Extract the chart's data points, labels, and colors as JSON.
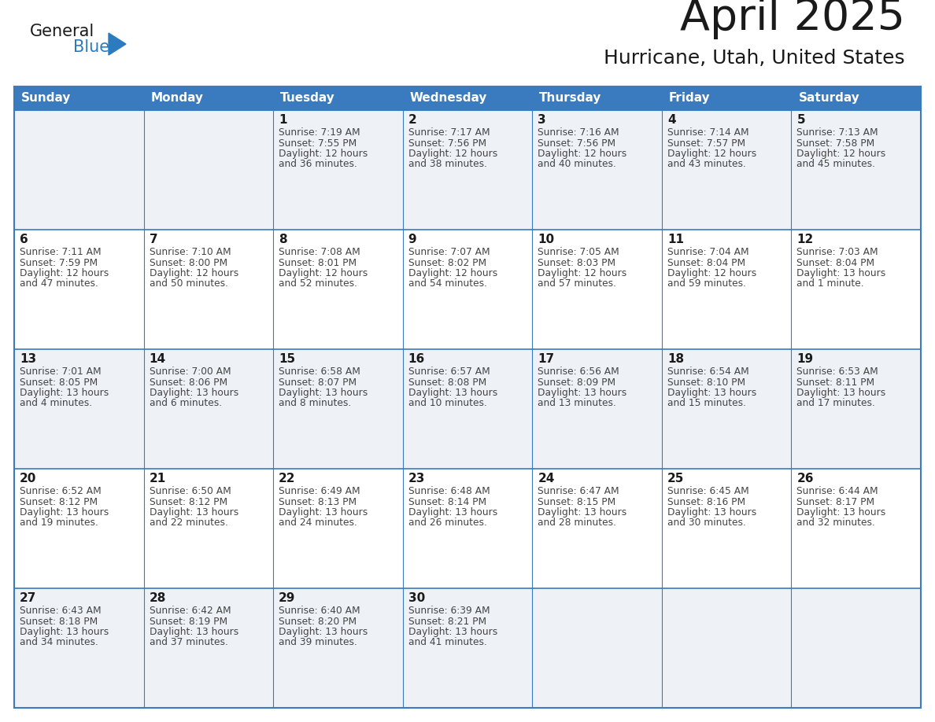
{
  "title": "April 2025",
  "subtitle": "Hurricane, Utah, United States",
  "header_bg": "#3a7abf",
  "header_text_color": "#ffffff",
  "cell_bg_odd": "#eef2f7",
  "cell_bg_even": "#ffffff",
  "border_color": "#3a7abf",
  "day_names": [
    "Sunday",
    "Monday",
    "Tuesday",
    "Wednesday",
    "Thursday",
    "Friday",
    "Saturday"
  ],
  "title_color": "#1a1a1a",
  "subtitle_color": "#1a1a1a",
  "day_number_color": "#1a1a1a",
  "cell_text_color": "#444444",
  "logo_general_color": "#1a1a1a",
  "logo_blue_color": "#2b7bbf",
  "weeks": [
    [
      {
        "day": "",
        "sunrise": "",
        "sunset": "",
        "daylight": ""
      },
      {
        "day": "",
        "sunrise": "",
        "sunset": "",
        "daylight": ""
      },
      {
        "day": "1",
        "sunrise": "7:19 AM",
        "sunset": "7:55 PM",
        "daylight": "12 hours and 36 minutes."
      },
      {
        "day": "2",
        "sunrise": "7:17 AM",
        "sunset": "7:56 PM",
        "daylight": "12 hours and 38 minutes."
      },
      {
        "day": "3",
        "sunrise": "7:16 AM",
        "sunset": "7:56 PM",
        "daylight": "12 hours and 40 minutes."
      },
      {
        "day": "4",
        "sunrise": "7:14 AM",
        "sunset": "7:57 PM",
        "daylight": "12 hours and 43 minutes."
      },
      {
        "day": "5",
        "sunrise": "7:13 AM",
        "sunset": "7:58 PM",
        "daylight": "12 hours and 45 minutes."
      }
    ],
    [
      {
        "day": "6",
        "sunrise": "7:11 AM",
        "sunset": "7:59 PM",
        "daylight": "12 hours and 47 minutes."
      },
      {
        "day": "7",
        "sunrise": "7:10 AM",
        "sunset": "8:00 PM",
        "daylight": "12 hours and 50 minutes."
      },
      {
        "day": "8",
        "sunrise": "7:08 AM",
        "sunset": "8:01 PM",
        "daylight": "12 hours and 52 minutes."
      },
      {
        "day": "9",
        "sunrise": "7:07 AM",
        "sunset": "8:02 PM",
        "daylight": "12 hours and 54 minutes."
      },
      {
        "day": "10",
        "sunrise": "7:05 AM",
        "sunset": "8:03 PM",
        "daylight": "12 hours and 57 minutes."
      },
      {
        "day": "11",
        "sunrise": "7:04 AM",
        "sunset": "8:04 PM",
        "daylight": "12 hours and 59 minutes."
      },
      {
        "day": "12",
        "sunrise": "7:03 AM",
        "sunset": "8:04 PM",
        "daylight": "13 hours and 1 minute."
      }
    ],
    [
      {
        "day": "13",
        "sunrise": "7:01 AM",
        "sunset": "8:05 PM",
        "daylight": "13 hours and 4 minutes."
      },
      {
        "day": "14",
        "sunrise": "7:00 AM",
        "sunset": "8:06 PM",
        "daylight": "13 hours and 6 minutes."
      },
      {
        "day": "15",
        "sunrise": "6:58 AM",
        "sunset": "8:07 PM",
        "daylight": "13 hours and 8 minutes."
      },
      {
        "day": "16",
        "sunrise": "6:57 AM",
        "sunset": "8:08 PM",
        "daylight": "13 hours and 10 minutes."
      },
      {
        "day": "17",
        "sunrise": "6:56 AM",
        "sunset": "8:09 PM",
        "daylight": "13 hours and 13 minutes."
      },
      {
        "day": "18",
        "sunrise": "6:54 AM",
        "sunset": "8:10 PM",
        "daylight": "13 hours and 15 minutes."
      },
      {
        "day": "19",
        "sunrise": "6:53 AM",
        "sunset": "8:11 PM",
        "daylight": "13 hours and 17 minutes."
      }
    ],
    [
      {
        "day": "20",
        "sunrise": "6:52 AM",
        "sunset": "8:12 PM",
        "daylight": "13 hours and 19 minutes."
      },
      {
        "day": "21",
        "sunrise": "6:50 AM",
        "sunset": "8:12 PM",
        "daylight": "13 hours and 22 minutes."
      },
      {
        "day": "22",
        "sunrise": "6:49 AM",
        "sunset": "8:13 PM",
        "daylight": "13 hours and 24 minutes."
      },
      {
        "day": "23",
        "sunrise": "6:48 AM",
        "sunset": "8:14 PM",
        "daylight": "13 hours and 26 minutes."
      },
      {
        "day": "24",
        "sunrise": "6:47 AM",
        "sunset": "8:15 PM",
        "daylight": "13 hours and 28 minutes."
      },
      {
        "day": "25",
        "sunrise": "6:45 AM",
        "sunset": "8:16 PM",
        "daylight": "13 hours and 30 minutes."
      },
      {
        "day": "26",
        "sunrise": "6:44 AM",
        "sunset": "8:17 PM",
        "daylight": "13 hours and 32 minutes."
      }
    ],
    [
      {
        "day": "27",
        "sunrise": "6:43 AM",
        "sunset": "8:18 PM",
        "daylight": "13 hours and 34 minutes."
      },
      {
        "day": "28",
        "sunrise": "6:42 AM",
        "sunset": "8:19 PM",
        "daylight": "13 hours and 37 minutes."
      },
      {
        "day": "29",
        "sunrise": "6:40 AM",
        "sunset": "8:20 PM",
        "daylight": "13 hours and 39 minutes."
      },
      {
        "day": "30",
        "sunrise": "6:39 AM",
        "sunset": "8:21 PM",
        "daylight": "13 hours and 41 minutes."
      },
      {
        "day": "",
        "sunrise": "",
        "sunset": "",
        "daylight": ""
      },
      {
        "day": "",
        "sunrise": "",
        "sunset": "",
        "daylight": ""
      },
      {
        "day": "",
        "sunrise": "",
        "sunset": "",
        "daylight": ""
      }
    ]
  ]
}
